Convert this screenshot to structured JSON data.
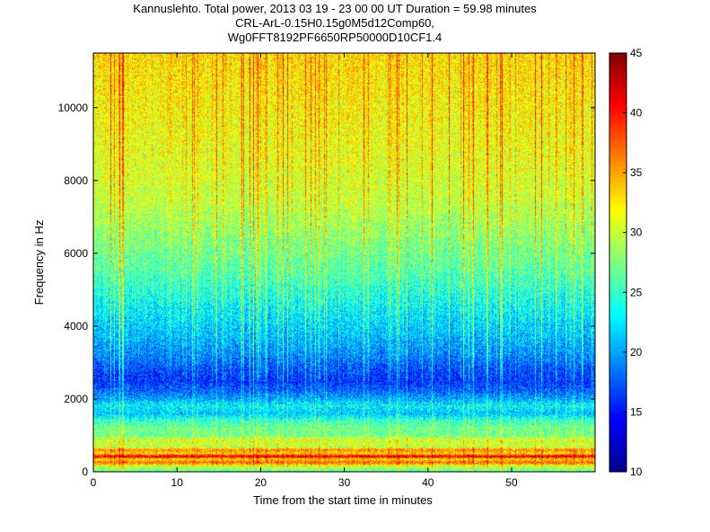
{
  "chart_data": {
    "type": "heatmap",
    "title_lines": [
      "Kannuslehto. Total power, 2013 03 19 - 23 00 00 UT  Duration = 59.98 minutes",
      "CRL-ArL-0.15H0.15g0M5d12Comp60,",
      "Wg0FFT8192PF6650RP50000D10CF1.4"
    ],
    "xlabel": "Time from the start time in minutes",
    "ylabel": "Frequency in Hz",
    "xlim": [
      0,
      59.98
    ],
    "ylim": [
      0,
      11500
    ],
    "xticks": [
      0,
      10,
      20,
      30,
      40,
      50
    ],
    "yticks": [
      0,
      2000,
      4000,
      6000,
      8000,
      10000
    ],
    "colorbar": {
      "colormap": "jet",
      "limits": [
        10,
        45
      ],
      "ticks": [
        10,
        15,
        20,
        25,
        30,
        35,
        40,
        45
      ]
    },
    "colormap_colors": [
      "#ffffff",
      "#00008f",
      "#0000ff",
      "#00ffff",
      "#ffff00",
      "#ff0000",
      "#800000"
    ],
    "power_profile_by_frequency": [
      {
        "freq_hz": 0,
        "power": 26
      },
      {
        "freq_hz": 150,
        "power": 30
      },
      {
        "freq_hz": 250,
        "power": 37
      },
      {
        "freq_hz": 350,
        "power": 33
      },
      {
        "freq_hz": 420,
        "power": 42
      },
      {
        "freq_hz": 500,
        "power": 33
      },
      {
        "freq_hz": 600,
        "power": 36
      },
      {
        "freq_hz": 700,
        "power": 29
      },
      {
        "freq_hz": 850,
        "power": 31
      },
      {
        "freq_hz": 1000,
        "power": 27
      },
      {
        "freq_hz": 1200,
        "power": 27
      },
      {
        "freq_hz": 1400,
        "power": 25
      },
      {
        "freq_hz": 1600,
        "power": 21
      },
      {
        "freq_hz": 1800,
        "power": 23
      },
      {
        "freq_hz": 2000,
        "power": 20
      },
      {
        "freq_hz": 2200,
        "power": 18
      },
      {
        "freq_hz": 2500,
        "power": 16
      },
      {
        "freq_hz": 2800,
        "power": 17
      },
      {
        "freq_hz": 3200,
        "power": 19
      },
      {
        "freq_hz": 3800,
        "power": 21
      },
      {
        "freq_hz": 4500,
        "power": 23
      },
      {
        "freq_hz": 5500,
        "power": 26
      },
      {
        "freq_hz": 6500,
        "power": 28
      },
      {
        "freq_hz": 7500,
        "power": 30
      },
      {
        "freq_hz": 8500,
        "power": 31
      },
      {
        "freq_hz": 10000,
        "power": 32
      },
      {
        "freq_hz": 11500,
        "power": 33
      }
    ]
  }
}
